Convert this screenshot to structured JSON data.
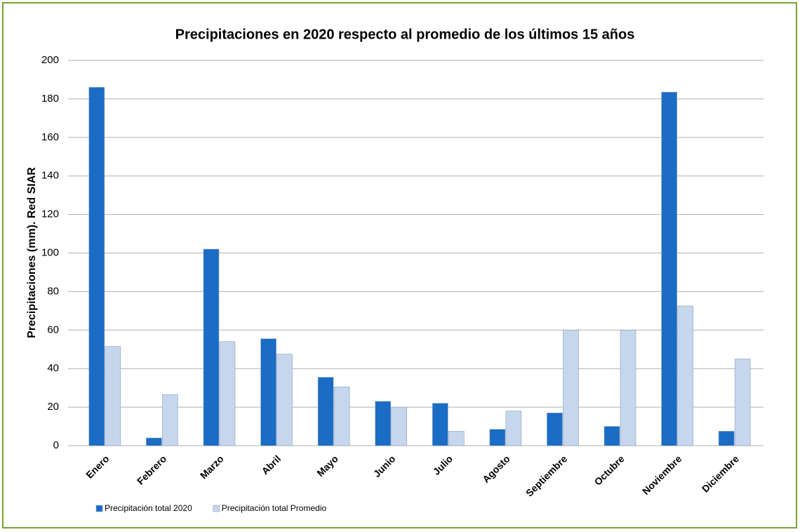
{
  "chart_data": {
    "type": "bar",
    "title": "Precipitaciones en 2020 respecto al promedio de los  últimos 15 años",
    "y_label": "Precipitaciones (mm). Red  SIAR",
    "categories": [
      "Enero",
      "Febrero",
      "Marzo",
      "Abril",
      "Mayo",
      "Junio",
      "Julio",
      "Agosto",
      "Septiembre",
      "Octubre",
      "Noviembre",
      "Diciembre"
    ],
    "series": [
      {
        "name": "Precipitación total 2020",
        "color": "#1a6cc4",
        "values": [
          186,
          4,
          102,
          55.5,
          35.5,
          23,
          22,
          8.5,
          17,
          10,
          183.5,
          7.5
        ]
      },
      {
        "name": "Precipitación total Promedio",
        "color": "#c6d6ec",
        "values": [
          51.5,
          26.5,
          54,
          47.5,
          30.5,
          20,
          7.5,
          18,
          60,
          60,
          72.5,
          45
        ]
      }
    ],
    "ylim": [
      0,
      200
    ],
    "yticks": [
      0,
      20,
      40,
      60,
      80,
      100,
      120,
      140,
      160,
      180,
      200
    ],
    "grid": true,
    "legend": "bottom-left"
  }
}
